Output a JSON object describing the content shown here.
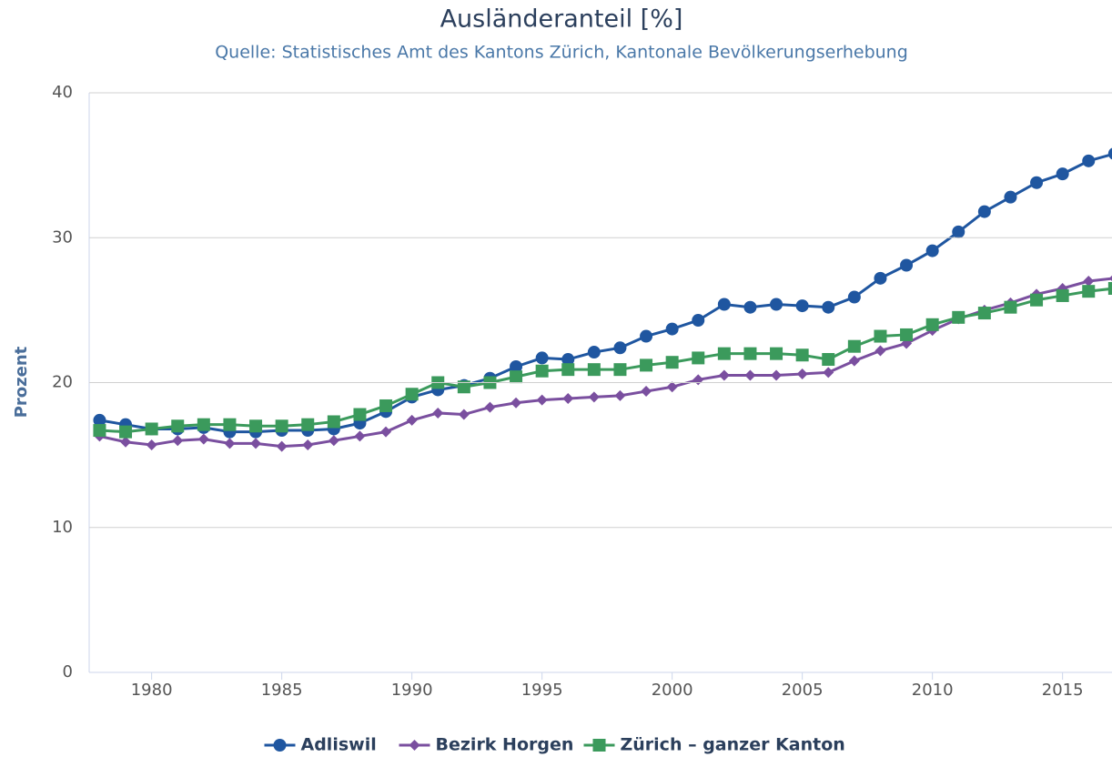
{
  "chart_data": {
    "type": "line",
    "title": "Ausländeranteil [%]",
    "subtitle": "Quelle: Statistisches Amt des Kantons Zürich, Kantonale Bevölkerungserhebung",
    "y_label": "Prozent",
    "x": [
      1978,
      1979,
      1980,
      1981,
      1982,
      1983,
      1984,
      1985,
      1986,
      1987,
      1988,
      1989,
      1990,
      1991,
      1992,
      1993,
      1994,
      1995,
      1996,
      1997,
      1998,
      1999,
      2000,
      2001,
      2002,
      2003,
      2004,
      2005,
      2006,
      2007,
      2008,
      2009,
      2010,
      2011,
      2012,
      2013,
      2014,
      2015,
      2016,
      2017
    ],
    "series": [
      {
        "name": "Adliswil",
        "color": "#1f56a0",
        "marker": "circle",
        "values": [
          17.4,
          17.1,
          16.8,
          16.8,
          16.9,
          16.6,
          16.6,
          16.7,
          16.7,
          16.8,
          17.2,
          18.0,
          19.0,
          19.5,
          19.8,
          20.3,
          21.1,
          21.7,
          21.6,
          22.1,
          22.4,
          23.2,
          23.7,
          24.3,
          25.4,
          25.2,
          25.4,
          25.3,
          25.2,
          25.9,
          27.2,
          28.1,
          29.1,
          30.4,
          31.8,
          32.8,
          33.8,
          34.4,
          35.3,
          35.8
        ]
      },
      {
        "name": "Bezirk Horgen",
        "color": "#7a4f9f",
        "marker": "diamond",
        "values": [
          16.3,
          15.9,
          15.7,
          16.0,
          16.1,
          15.8,
          15.8,
          15.6,
          15.7,
          16.0,
          16.3,
          16.6,
          17.4,
          17.9,
          17.8,
          18.3,
          18.6,
          18.8,
          18.9,
          19.0,
          19.1,
          19.4,
          19.7,
          20.2,
          20.5,
          20.5,
          20.5,
          20.6,
          20.7,
          21.5,
          22.2,
          22.7,
          23.6,
          24.4,
          25.0,
          25.5,
          26.1,
          26.5,
          27.0,
          27.2
        ]
      },
      {
        "name": "Zürich – ganzer Kanton",
        "color": "#3b9a5c",
        "marker": "square",
        "values": [
          16.7,
          16.6,
          16.8,
          17.0,
          17.1,
          17.1,
          17.0,
          17.0,
          17.1,
          17.3,
          17.8,
          18.4,
          19.2,
          20.0,
          19.7,
          20.0,
          20.4,
          20.8,
          20.9,
          20.9,
          20.9,
          21.2,
          21.4,
          21.7,
          22.0,
          22.0,
          22.0,
          21.9,
          21.6,
          22.5,
          23.2,
          23.3,
          24.0,
          24.5,
          24.8,
          25.2,
          25.7,
          26.0,
          26.3,
          26.5
        ]
      }
    ],
    "xlim": [
      1977.6,
      2016.9
    ],
    "xticks": [
      1980,
      1985,
      1990,
      1995,
      2000,
      2005,
      2010,
      2015
    ],
    "ylim": [
      0,
      40
    ],
    "yticks": [
      0,
      10,
      20,
      30,
      40
    ],
    "grid": true,
    "legend": "bottom"
  }
}
